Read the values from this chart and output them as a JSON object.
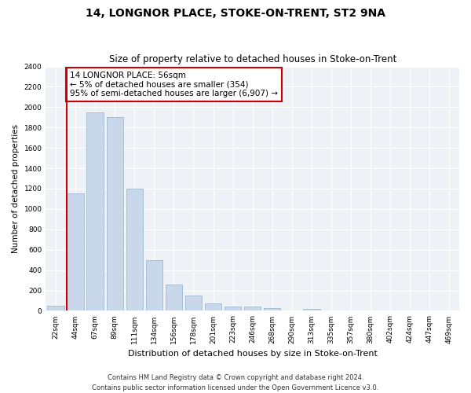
{
  "title": "14, LONGNOR PLACE, STOKE-ON-TRENT, ST2 9NA",
  "subtitle": "Size of property relative to detached houses in Stoke-on-Trent",
  "xlabel": "Distribution of detached houses by size in Stoke-on-Trent",
  "ylabel": "Number of detached properties",
  "categories": [
    "22sqm",
    "44sqm",
    "67sqm",
    "89sqm",
    "111sqm",
    "134sqm",
    "156sqm",
    "178sqm",
    "201sqm",
    "223sqm",
    "246sqm",
    "268sqm",
    "290sqm",
    "313sqm",
    "335sqm",
    "357sqm",
    "380sqm",
    "402sqm",
    "424sqm",
    "447sqm",
    "469sqm"
  ],
  "values": [
    50,
    1150,
    1950,
    1900,
    1200,
    500,
    260,
    150,
    75,
    40,
    40,
    30,
    5,
    15,
    5,
    5,
    3,
    3,
    3,
    3,
    3
  ],
  "bar_color": "#c8d8ea",
  "bar_edge_color": "#a0b8d0",
  "vline_x_index": 1,
  "vline_color": "#cc0000",
  "annotation_text": "14 LONGNOR PLACE: 56sqm\n← 5% of detached houses are smaller (354)\n95% of semi-detached houses are larger (6,907) →",
  "annotation_box_color": "#ffffff",
  "annotation_box_edge": "#cc0000",
  "ylim": [
    0,
    2400
  ],
  "yticks": [
    0,
    200,
    400,
    600,
    800,
    1000,
    1200,
    1400,
    1600,
    1800,
    2000,
    2200,
    2400
  ],
  "footer1": "Contains HM Land Registry data © Crown copyright and database right 2024.",
  "footer2": "Contains public sector information licensed under the Open Government Licence v3.0.",
  "bg_color": "#ffffff",
  "plot_bg_color": "#eef2f7",
  "title_fontsize": 10,
  "subtitle_fontsize": 8.5,
  "xlabel_fontsize": 8,
  "ylabel_fontsize": 7.5,
  "tick_fontsize": 6.5,
  "footer_fontsize": 6,
  "annot_fontsize": 7.5
}
